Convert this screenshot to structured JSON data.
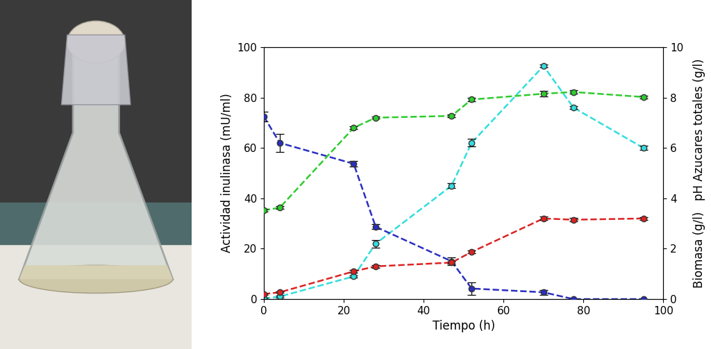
{
  "chart_data": {
    "type": "line",
    "xlabel": "Tiempo (h)",
    "ylabel": "Actividad inulinasa (mU/ml)",
    "y2label": "Biomasa (g/l)   pH Azucares totales (g/l)",
    "x": [
      0,
      4,
      22.5,
      28,
      47,
      52,
      70,
      77.5,
      95
    ],
    "xlim": [
      0,
      100
    ],
    "xticks": [
      0,
      20,
      40,
      60,
      80,
      100
    ],
    "ylim": [
      0,
      100
    ],
    "yticks": [
      0,
      20,
      40,
      60,
      80,
      100
    ],
    "y2lim": [
      0,
      10
    ],
    "y2ticks": [
      0,
      2,
      4,
      6,
      8,
      10
    ],
    "grid": false,
    "series": [
      {
        "color": "#2a2fc0",
        "axis": "y2",
        "marker": "o",
        "line_style": "dashed",
        "values": [
          7.25,
          6.2,
          5.37,
          2.87,
          1.5,
          0.42,
          0.27,
          0.0,
          0.0
        ],
        "errors": [
          0.2,
          0.35,
          0.1,
          0.1,
          0.15,
          0.25,
          0.1,
          0.0,
          0.0
        ]
      },
      {
        "color": "#2ecc2e",
        "axis": "y2",
        "marker": "o",
        "line_style": "dashed",
        "values": [
          3.52,
          3.63,
          6.8,
          7.2,
          7.27,
          7.92,
          8.15,
          8.22,
          8.02
        ],
        "errors": [
          0.05,
          0.05,
          0.05,
          0.05,
          0.05,
          0.07,
          0.1,
          0.08,
          0.05
        ]
      },
      {
        "color": "#33dddd",
        "axis": "y",
        "marker": "o",
        "line_style": "dashed",
        "values": [
          0.2,
          1.0,
          9.0,
          22.0,
          45.0,
          62.0,
          92.5,
          76.0,
          60.0
        ],
        "errors": [
          0.3,
          0.3,
          0.5,
          1.5,
          1.0,
          1.5,
          0.5,
          0.5,
          0.8
        ]
      },
      {
        "color": "#dd2222",
        "axis": "y2",
        "marker": "o",
        "line_style": "dashed",
        "values": [
          0.2,
          0.27,
          1.1,
          1.3,
          1.45,
          1.87,
          3.2,
          3.15,
          3.2
        ],
        "errors": [
          0.03,
          0.03,
          0.05,
          0.05,
          0.05,
          0.05,
          0.07,
          0.06,
          0.05
        ]
      }
    ]
  }
}
